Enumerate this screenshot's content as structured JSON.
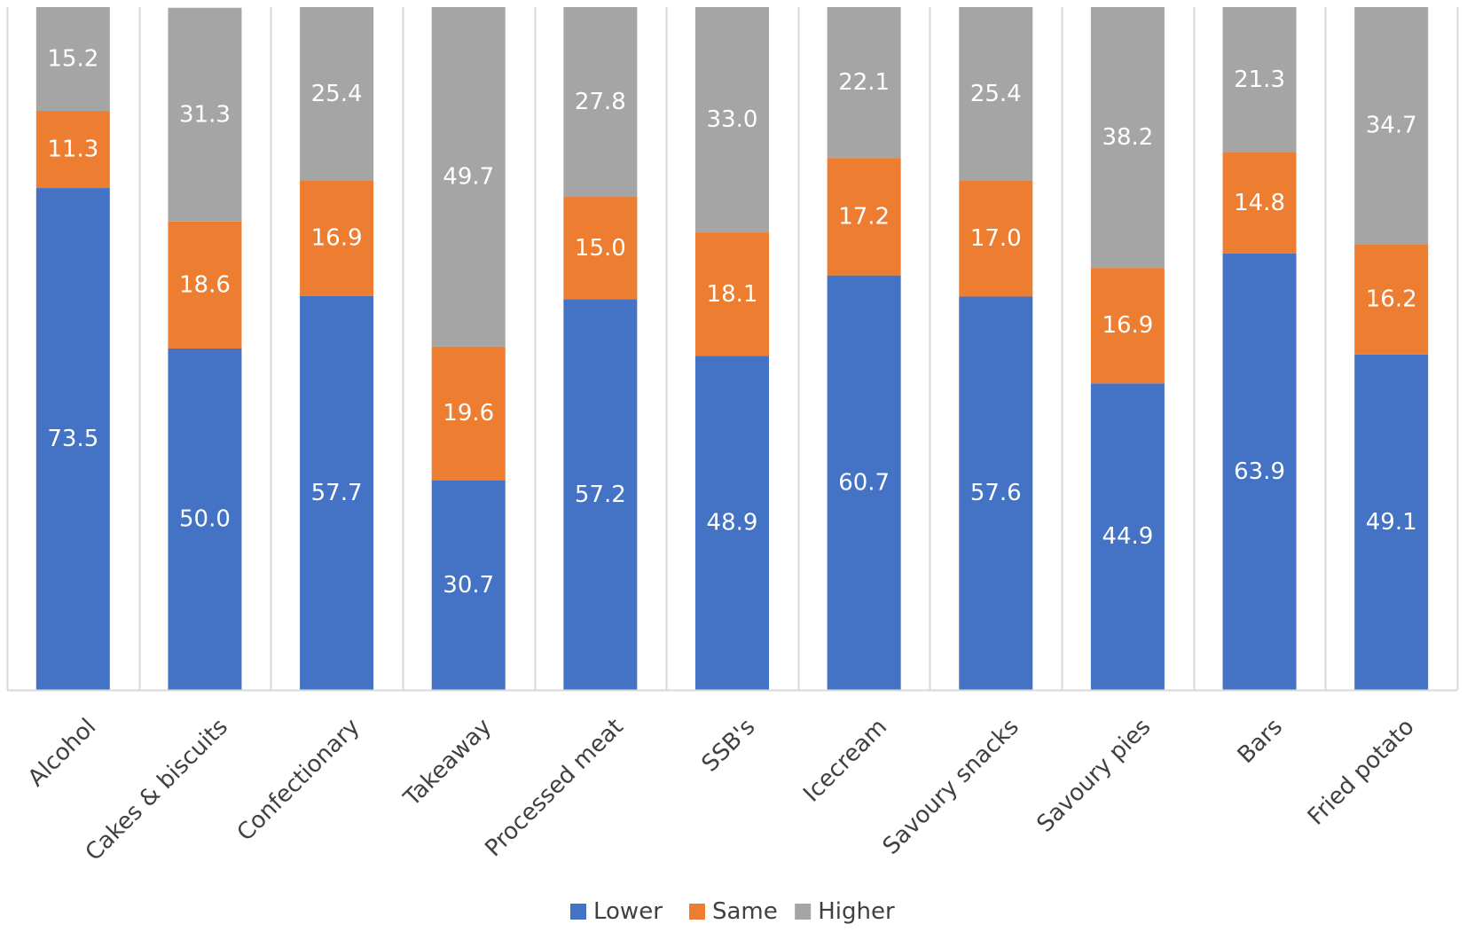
{
  "chart_data": {
    "type": "bar",
    "stacked": true,
    "percent_stacked": true,
    "categories": [
      "Alcohol",
      "Cakes & biscuits",
      "Confectionary",
      "Takeaway",
      "Processed meat",
      "SSB's",
      "Icecream",
      "Savoury snacks",
      "Savoury pies",
      "Bars",
      "Fried potato"
    ],
    "series": [
      {
        "name": "Lower",
        "color": "#4472C4",
        "values": [
          73.5,
          50.0,
          57.7,
          30.7,
          57.2,
          48.9,
          60.7,
          57.6,
          44.9,
          63.9,
          49.1
        ]
      },
      {
        "name": "Same",
        "color": "#ED7D31",
        "values": [
          11.3,
          18.6,
          16.9,
          19.6,
          15.0,
          18.1,
          17.2,
          17.0,
          16.9,
          14.8,
          16.2
        ]
      },
      {
        "name": "Higher",
        "color": "#A5A5A5",
        "values": [
          15.2,
          31.3,
          25.4,
          49.7,
          27.8,
          33.0,
          22.1,
          25.4,
          38.2,
          21.3,
          34.7
        ]
      }
    ],
    "value_labels": [
      [
        "73.5",
        "50.0",
        "57.7",
        "30.7",
        "57.2",
        "48.9",
        "60.7",
        "57.6",
        "44.9",
        "63.9",
        "49.1"
      ],
      [
        "11.3",
        "18.6",
        "16.9",
        "19.6",
        "15.0",
        "18.1",
        "17.2",
        "17.0",
        "16.9",
        "14.8",
        "16.2"
      ],
      [
        "15.2",
        "31.3",
        "25.4",
        "49.7",
        "27.8",
        "33.0",
        "22.1",
        "25.4",
        "38.2",
        "21.3",
        "34.7"
      ]
    ],
    "title": "",
    "xlabel": "",
    "ylabel": "",
    "ylim": [
      0,
      100
    ],
    "grid": "vertical separators between categories",
    "legend": "bottom-center"
  }
}
